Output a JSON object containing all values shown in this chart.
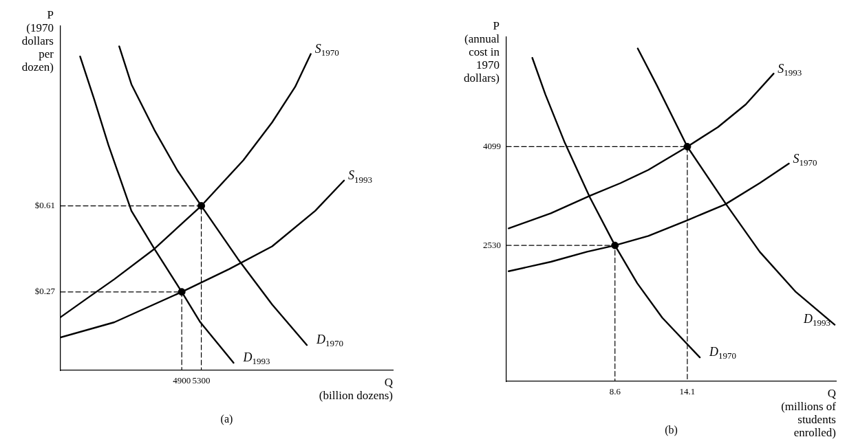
{
  "chart_data": [
    {
      "type": "line",
      "title": "(a)",
      "xlabel": "Q\n(billion dozens)",
      "ylabel": "P\n(1970\ndollars\nper\ndozen)",
      "line_style": "solid",
      "xlim": [
        2420,
        9220
      ],
      "ylim": [
        -0.04,
        1.32
      ],
      "xticks": [
        4900,
        5300
      ],
      "yticks": [
        {
          "value": 0.27,
          "label": "$0.27"
        },
        {
          "value": 0.61,
          "label": "$0.61"
        }
      ],
      "series": [
        {
          "name": "S$_{1970}$",
          "color": "#000000",
          "x": [
            2420,
            2930,
            3520,
            4340,
            5300,
            6160,
            6750,
            7220,
            7540
          ],
          "values": [
            0.17,
            0.24,
            0.32,
            0.44,
            0.61,
            0.79,
            0.94,
            1.08,
            1.21
          ]
        },
        {
          "name": "S$_{1993}$",
          "color": "#000000",
          "x": [
            2420,
            3520,
            4900,
            5870,
            6750,
            7630,
            8220
          ],
          "values": [
            0.09,
            0.15,
            0.27,
            0.36,
            0.45,
            0.59,
            0.71
          ]
        },
        {
          "name": "D$_{1993}$",
          "color": "#000000",
          "x": [
            2820,
            3110,
            3400,
            3870,
            4340,
            4900,
            5280,
            5960
          ],
          "values": [
            1.2,
            1.03,
            0.85,
            0.59,
            0.44,
            0.27,
            0.15,
            -0.01
          ]
        },
        {
          "name": "D$_{1970}$",
          "color": "#000000",
          "x": [
            3620,
            3870,
            4340,
            4810,
            5300,
            6050,
            6750,
            7460
          ],
          "values": [
            1.24,
            1.09,
            0.91,
            0.75,
            0.61,
            0.4,
            0.22,
            0.06
          ]
        },
        {
          "type": "line",
          "line_style": "dashed",
          "color": "#000000",
          "x": [
            2420,
            5300,
            5300
          ],
          "values": [
            0.61,
            0.61,
            -0.04
          ]
        },
        {
          "type": "line",
          "line_style": "dashed",
          "color": "#000000",
          "x": [
            2420,
            4900,
            4900
          ],
          "values": [
            0.27,
            0.27,
            -0.04
          ]
        },
        {
          "type": "scatter",
          "marker": "circle",
          "color": "#000000",
          "x": [
            4900,
            5300
          ],
          "values": [
            0.27,
            0.61
          ]
        }
      ]
    },
    {
      "type": "line",
      "title": "(b)",
      "xlabel": "Q\n(millions of\nstudents\nenrolled)",
      "ylabel": "P\n(annual\ncost in\n1970\ndollars)",
      "line_style": "solid",
      "xlim": [
        0.35,
        25.4
      ],
      "ylim": [
        370,
        5840
      ],
      "xticks": [
        8.6,
        14.1
      ],
      "yticks": [
        2530,
        4099
      ],
      "series": [
        {
          "name": "S$_{1993}$",
          "color": "#000000",
          "x": [
            0.52,
            3.73,
            6.7,
            9.02,
            11.14,
            14.1,
            16.43,
            18.54,
            20.66
          ],
          "values": [
            2800,
            3040,
            3320,
            3520,
            3730,
            4099,
            4410,
            4770,
            5260
          ]
        },
        {
          "name": "S$_{1970}$",
          "color": "#000000",
          "x": [
            0.52,
            3.73,
            6.48,
            8.6,
            11.14,
            14.1,
            16.96,
            19.6,
            21.82
          ],
          "values": [
            2120,
            2270,
            2430,
            2530,
            2680,
            2930,
            3180,
            3520,
            3830
          ]
        },
        {
          "name": "D$_{1970}$",
          "color": "#000000",
          "x": [
            2.32,
            3.31,
            4.79,
            6.7,
            8.6,
            10.29,
            12.2,
            15.05
          ],
          "values": [
            5510,
            4930,
            4160,
            3290,
            2530,
            1930,
            1380,
            750
          ]
        },
        {
          "name": "D$_{1993}$",
          "color": "#000000",
          "x": [
            10.33,
            11.77,
            14.1,
            17.06,
            19.6,
            22.35,
            25.3
          ],
          "values": [
            5660,
            5080,
            4099,
            3180,
            2430,
            1790,
            1270
          ]
        },
        {
          "type": "line",
          "line_style": "dashed",
          "color": "#000000",
          "x": [
            0.35,
            14.1,
            14.1
          ],
          "values": [
            4099,
            4099,
            370
          ]
        },
        {
          "type": "line",
          "line_style": "dashed",
          "color": "#000000",
          "x": [
            0.35,
            8.6,
            8.6
          ],
          "values": [
            2530,
            2530,
            370
          ]
        },
        {
          "type": "scatter",
          "marker": "circle",
          "color": "#000000",
          "x": [
            8.6,
            14.1
          ],
          "values": [
            2530,
            4099
          ]
        }
      ]
    }
  ]
}
